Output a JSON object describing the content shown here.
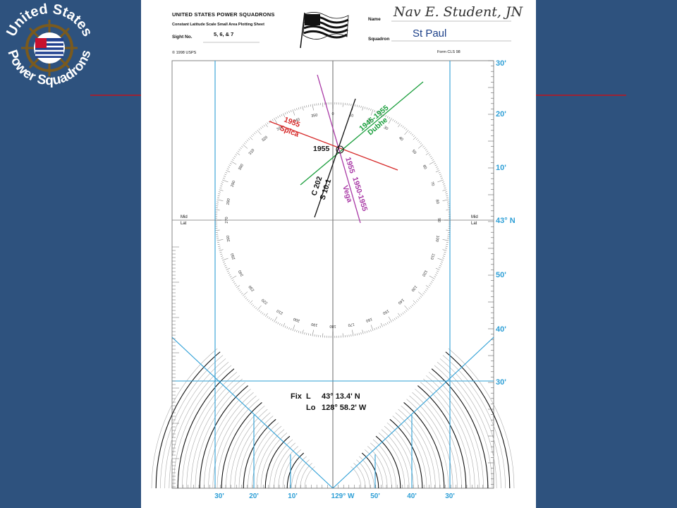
{
  "logo": {
    "top_text": "United States",
    "bottom_text": "Power Squadrons"
  },
  "sheet": {
    "title": "UNITED STATES POWER SQUADRONS",
    "subtitle": "Constant Latitude Scale Small Area Plotting Sheet",
    "sight_label": "Sight No.",
    "sight_value": "5, 6, & 7",
    "copyright": "© 1998 USPS",
    "name_label": "Name",
    "name_value": "Nav E. Student, JN",
    "squadron_label": "Squadron",
    "squadron_value": "St Paul",
    "form": "Form CLS 98"
  },
  "right_scale": [
    "30'",
    "20'",
    "10'",
    "43° N",
    "50'",
    "40'",
    "30'"
  ],
  "bottom_scale": [
    "30'",
    "20'",
    "10'",
    "129° W",
    "50'",
    "40'",
    "30'"
  ],
  "mid_lat_labels": [
    "Mid",
    "Lat"
  ],
  "compass_ticks": [
    "0",
    "10",
    "20",
    "30",
    "40",
    "50",
    "60",
    "70",
    "80",
    "90",
    "100",
    "110",
    "120",
    "130",
    "140",
    "150",
    "160",
    "170",
    "180",
    "190",
    "200",
    "210",
    "220",
    "230",
    "240",
    "250",
    "260",
    "270",
    "280",
    "290",
    "300",
    "310",
    "320",
    "330",
    "340",
    "350"
  ],
  "plot_labels": {
    "spica_time": "1955",
    "spica_name": "Spica",
    "dubhe_time": "1945-1955",
    "dubhe_name": "Dubhe",
    "vega_time": "1955",
    "vega_runtime": "1950-1955",
    "vega_name": "Vega",
    "dr_time": "1955",
    "course": "C 202",
    "speed": "S 10.1"
  },
  "fix": {
    "label": "Fix",
    "lat_label": "L",
    "lat_value": "43° 13.4' N",
    "lon_label": "Lo",
    "lon_value": "128° 58.2' W"
  },
  "colors": {
    "background": "#2e527e",
    "grid_blue": "#2e9fd6",
    "spica": "#d62828",
    "dubhe": "#1a9e3c",
    "vega": "#a93aa6",
    "black": "#111111"
  }
}
